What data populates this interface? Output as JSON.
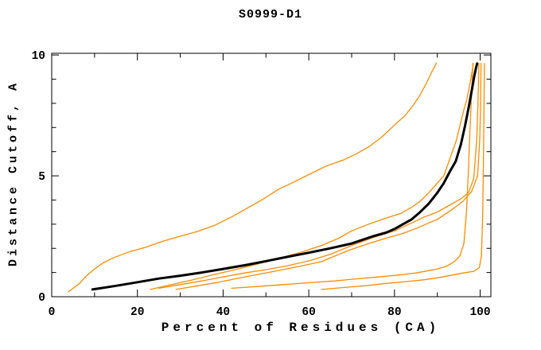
{
  "chart_data": {
    "type": "line",
    "title": "S0999-D1",
    "xlabel": "Percent of Residues (CA)",
    "ylabel": "Distance Cutoff, A",
    "xlim": [
      0,
      102.5
    ],
    "ylim": [
      0,
      10.07
    ],
    "grid": false,
    "legend": "none",
    "axis_color": "#000000",
    "background": "#ffffff",
    "x_ticks": {
      "major": [
        0,
        20,
        40,
        60,
        80,
        100
      ],
      "labels": [
        "0",
        "20",
        "40",
        "60",
        "80",
        "100"
      ],
      "minor": [
        10,
        30,
        50,
        70,
        90
      ]
    },
    "y_ticks": {
      "major": [
        0,
        5,
        10
      ],
      "labels": [
        "0",
        "5",
        "10"
      ],
      "minor": [
        1,
        2,
        3,
        4,
        6,
        7,
        8,
        9
      ]
    },
    "series": [
      {
        "name": "orange-curve-1-left-envelope",
        "color": "#ff8c00",
        "width": 1.3,
        "points": [
          [
            3.9,
            0.2
          ],
          [
            5,
            0.35
          ],
          [
            6.5,
            0.55
          ],
          [
            8,
            0.85
          ],
          [
            10,
            1.15
          ],
          [
            12,
            1.4
          ],
          [
            14.5,
            1.62
          ],
          [
            18,
            1.85
          ],
          [
            22,
            2.05
          ],
          [
            26,
            2.3
          ],
          [
            30,
            2.5
          ],
          [
            34,
            2.7
          ],
          [
            38,
            2.95
          ],
          [
            42,
            3.3
          ],
          [
            46,
            3.7
          ],
          [
            49,
            4.0
          ],
          [
            53,
            4.45
          ],
          [
            56,
            4.7
          ],
          [
            60,
            5.05
          ],
          [
            64,
            5.4
          ],
          [
            68,
            5.65
          ],
          [
            71,
            5.9
          ],
          [
            74,
            6.2
          ],
          [
            77,
            6.6
          ],
          [
            80,
            7.1
          ],
          [
            82.5,
            7.5
          ],
          [
            84.5,
            7.95
          ],
          [
            86,
            8.35
          ],
          [
            87.5,
            8.85
          ],
          [
            88.7,
            9.3
          ],
          [
            89.8,
            9.67
          ]
        ]
      },
      {
        "name": "orange-curve-2",
        "color": "#ff8c00",
        "width": 1.3,
        "points": [
          [
            23,
            0.3
          ],
          [
            28,
            0.5
          ],
          [
            33,
            0.7
          ],
          [
            38,
            0.92
          ],
          [
            43,
            1.13
          ],
          [
            48,
            1.35
          ],
          [
            53,
            1.58
          ],
          [
            58,
            1.83
          ],
          [
            63,
            2.12
          ],
          [
            67,
            2.42
          ],
          [
            70,
            2.72
          ],
          [
            74,
            3.0
          ],
          [
            78,
            3.25
          ],
          [
            81.5,
            3.45
          ],
          [
            84,
            3.7
          ],
          [
            86,
            3.95
          ],
          [
            88,
            4.3
          ],
          [
            90,
            4.7
          ],
          [
            91.5,
            5.0
          ],
          [
            93.3,
            5.9
          ],
          [
            94.5,
            6.5
          ],
          [
            95.3,
            7.1
          ],
          [
            96.3,
            7.8
          ],
          [
            96.9,
            8.15
          ],
          [
            97.6,
            8.8
          ],
          [
            98.1,
            9.3
          ],
          [
            98.4,
            9.65
          ]
        ]
      },
      {
        "name": "orange-curve-3",
        "color": "#ff8c00",
        "width": 1.3,
        "points": [
          [
            25,
            0.35
          ],
          [
            30,
            0.5
          ],
          [
            35,
            0.65
          ],
          [
            40,
            0.82
          ],
          [
            45,
            0.98
          ],
          [
            50,
            1.12
          ],
          [
            55,
            1.28
          ],
          [
            60,
            1.48
          ],
          [
            65,
            1.75
          ],
          [
            70,
            2.12
          ],
          [
            75,
            2.45
          ],
          [
            80,
            2.72
          ],
          [
            84,
            3.05
          ],
          [
            87,
            3.3
          ],
          [
            90,
            3.5
          ],
          [
            93,
            3.8
          ],
          [
            95.5,
            4.05
          ],
          [
            97.3,
            4.3
          ],
          [
            98.5,
            4.9
          ],
          [
            99.2,
            6.5
          ],
          [
            99.5,
            8.0
          ],
          [
            99.7,
            9.65
          ]
        ]
      },
      {
        "name": "orange-curve-4",
        "color": "#ff8c00",
        "width": 1.3,
        "points": [
          [
            29,
            0.3
          ],
          [
            34,
            0.45
          ],
          [
            39,
            0.6
          ],
          [
            44,
            0.78
          ],
          [
            49,
            0.95
          ],
          [
            54,
            1.12
          ],
          [
            59,
            1.3
          ],
          [
            63,
            1.45
          ],
          [
            67,
            1.75
          ],
          [
            70,
            1.96
          ],
          [
            74,
            2.2
          ],
          [
            78,
            2.42
          ],
          [
            82,
            2.62
          ],
          [
            85,
            2.82
          ],
          [
            88,
            3.05
          ],
          [
            90,
            3.2
          ],
          [
            93,
            3.55
          ],
          [
            96,
            3.95
          ],
          [
            98,
            4.35
          ],
          [
            99.4,
            5.0
          ],
          [
            99.9,
            6.5
          ],
          [
            100.1,
            8.0
          ],
          [
            100.2,
            9.65
          ]
        ]
      },
      {
        "name": "orange-curve-5-low",
        "color": "#ff8c00",
        "width": 1.3,
        "points": [
          [
            42,
            0.35
          ],
          [
            48,
            0.42
          ],
          [
            54,
            0.5
          ],
          [
            60,
            0.58
          ],
          [
            66,
            0.65
          ],
          [
            70,
            0.72
          ],
          [
            75,
            0.8
          ],
          [
            80,
            0.88
          ],
          [
            85,
            0.98
          ],
          [
            88,
            1.08
          ],
          [
            90,
            1.15
          ],
          [
            92,
            1.25
          ],
          [
            94,
            1.45
          ],
          [
            95.3,
            1.7
          ],
          [
            96.2,
            2.2
          ],
          [
            96.8,
            3.5
          ],
          [
            97.2,
            5.0
          ],
          [
            97.6,
            6.8
          ],
          [
            98,
            8.4
          ],
          [
            98.2,
            9.2
          ],
          [
            98.3,
            9.65
          ]
        ]
      },
      {
        "name": "orange-curve-6-lowest",
        "color": "#ff8c00",
        "width": 1.3,
        "points": [
          [
            63,
            0.3
          ],
          [
            68,
            0.38
          ],
          [
            73,
            0.45
          ],
          [
            78,
            0.55
          ],
          [
            83,
            0.63
          ],
          [
            87,
            0.7
          ],
          [
            90,
            0.78
          ],
          [
            93,
            0.88
          ],
          [
            96,
            0.98
          ],
          [
            98.5,
            1.05
          ],
          [
            99.8,
            1.2
          ],
          [
            100.3,
            1.7
          ],
          [
            100.6,
            3.5
          ],
          [
            100.8,
            6.0
          ],
          [
            100.9,
            8.0
          ],
          [
            101,
            9.65
          ]
        ]
      },
      {
        "name": "black-model-curve",
        "color": "#000000",
        "width": 3,
        "points": [
          [
            9.5,
            0.3
          ],
          [
            15,
            0.45
          ],
          [
            20,
            0.6
          ],
          [
            25,
            0.75
          ],
          [
            30,
            0.87
          ],
          [
            35,
            1.0
          ],
          [
            40,
            1.15
          ],
          [
            45,
            1.3
          ],
          [
            50,
            1.47
          ],
          [
            55,
            1.65
          ],
          [
            60,
            1.82
          ],
          [
            65,
            2.0
          ],
          [
            70,
            2.2
          ],
          [
            75,
            2.5
          ],
          [
            78,
            2.65
          ],
          [
            80,
            2.8
          ],
          [
            82,
            3.0
          ],
          [
            84,
            3.2
          ],
          [
            86,
            3.5
          ],
          [
            88,
            3.85
          ],
          [
            90,
            4.3
          ],
          [
            91.5,
            4.7
          ],
          [
            93,
            5.2
          ],
          [
            94.3,
            5.6
          ],
          [
            95.5,
            6.3
          ],
          [
            96.5,
            7.1
          ],
          [
            97.4,
            7.9
          ],
          [
            98,
            8.5
          ],
          [
            98.6,
            9.1
          ],
          [
            99,
            9.45
          ],
          [
            99.3,
            9.65
          ]
        ]
      }
    ]
  }
}
